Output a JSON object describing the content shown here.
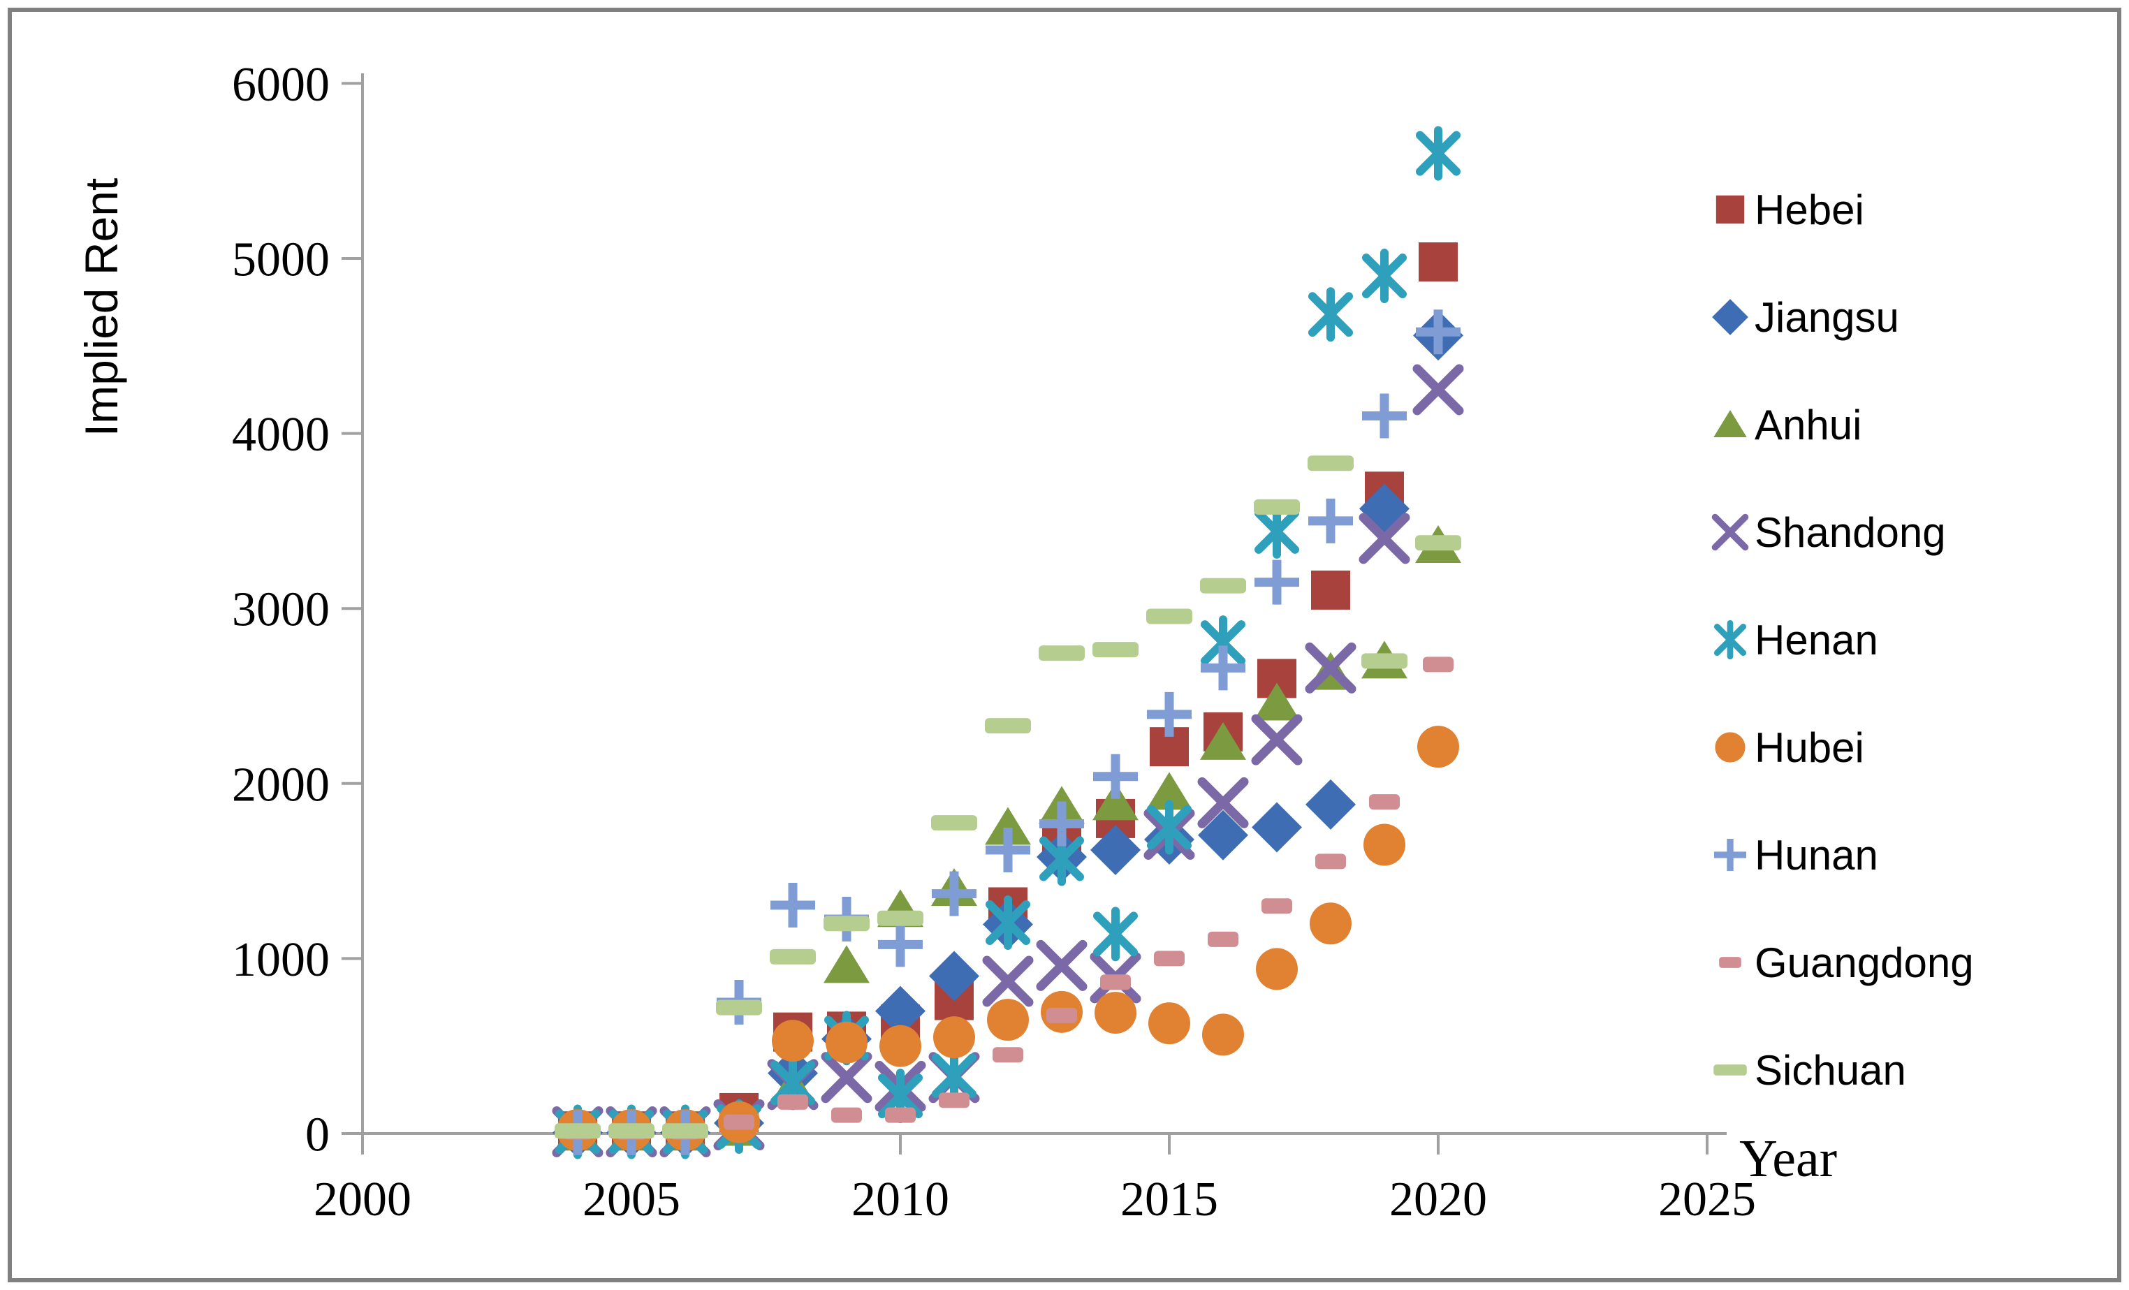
{
  "chart_data": {
    "type": "scatter",
    "title": "",
    "xlabel": "Year",
    "ylabel": "Implied Rent",
    "xlim": [
      2000,
      2025
    ],
    "ylim": [
      0,
      6000
    ],
    "xticks": [
      2000,
      2005,
      2010,
      2015,
      2020,
      2025
    ],
    "yticks": [
      0,
      1000,
      2000,
      3000,
      4000,
      5000,
      6000
    ],
    "grid": false,
    "legend_position": "right",
    "x": [
      2004,
      2005,
      2006,
      2007,
      2008,
      2009,
      2010,
      2011,
      2012,
      2013,
      2014,
      2015,
      2016,
      2017,
      2018,
      2019,
      2020
    ],
    "series": [
      {
        "name": "Hebei",
        "marker": "square",
        "color": "#A7423C",
        "values": [
          15,
          15,
          15,
          120,
          580,
          585,
          625,
          760,
          1295,
          1690,
          1800,
          2210,
          2295,
          2600,
          3105,
          3670,
          4980
        ]
      },
      {
        "name": "Jiangsu",
        "marker": "diamond",
        "color": "#3F6DB3",
        "values": [
          5,
          5,
          5,
          60,
          345,
          540,
          700,
          900,
          1195,
          1580,
          1620,
          1680,
          1705,
          1750,
          1880,
          3570,
          4560
        ]
      },
      {
        "name": "Anhui",
        "marker": "triangle",
        "color": "#7C9B40",
        "values": [
          5,
          5,
          5,
          30,
          265,
          960,
          1280,
          1400,
          1750,
          1870,
          1890,
          1950,
          2235,
          2460,
          2635,
          2700,
          3360
        ]
      },
      {
        "name": "Shandong",
        "marker": "x",
        "color": "#7B68A6",
        "values": [
          10,
          10,
          10,
          50,
          280,
          320,
          270,
          320,
          870,
          960,
          890,
          1710,
          1890,
          2250,
          2660,
          3400,
          4250
        ]
      },
      {
        "name": "Henan",
        "marker": "star",
        "color": "#2EA0BB",
        "values": [
          10,
          10,
          10,
          40,
          290,
          545,
          215,
          330,
          1205,
          1570,
          1140,
          1750,
          2805,
          3440,
          4680,
          4900,
          5600
        ]
      },
      {
        "name": "Hubei",
        "marker": "circle",
        "color": "#E08231",
        "values": [
          20,
          20,
          20,
          65,
          530,
          520,
          500,
          550,
          650,
          695,
          690,
          630,
          565,
          940,
          1200,
          1650,
          2210
        ]
      },
      {
        "name": "Hunan",
        "marker": "plus",
        "color": "#7F9DD4",
        "values": [
          5,
          5,
          5,
          750,
          1305,
          1225,
          1080,
          1370,
          1620,
          1770,
          2040,
          2395,
          2660,
          3150,
          3500,
          4100,
          4580
        ]
      },
      {
        "name": "Guangdong",
        "marker": "dash-short",
        "color": "#D08E93",
        "values": [
          10,
          10,
          10,
          65,
          180,
          105,
          105,
          190,
          450,
          675,
          865,
          1000,
          1110,
          1300,
          1555,
          1895,
          2680
        ]
      },
      {
        "name": "Sichuan",
        "marker": "dash-long",
        "color": "#B6CD90",
        "values": [
          15,
          15,
          15,
          720,
          1010,
          1200,
          1230,
          1775,
          2330,
          2745,
          2765,
          2955,
          3130,
          3580,
          3830,
          2700,
          3375
        ]
      }
    ]
  },
  "colors": {
    "background": "#FFFFFF",
    "axis": "#A0A0A0",
    "border": "#808080",
    "text": "#000000"
  }
}
